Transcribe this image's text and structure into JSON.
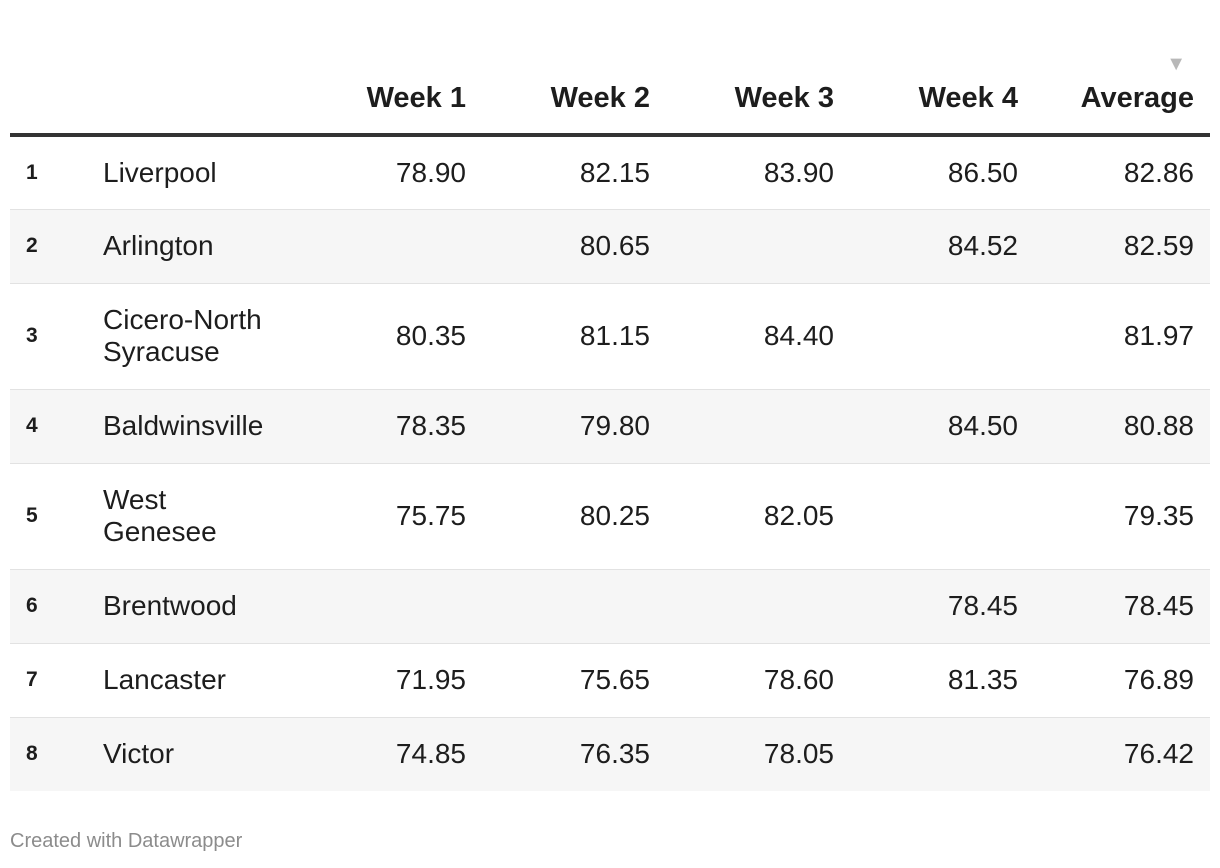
{
  "table": {
    "columns": [
      "",
      "",
      "Week 1",
      "Week 2",
      "Week 3",
      "Week 4",
      "Average"
    ],
    "rows": [
      {
        "rank": "1",
        "name": "Liverpool",
        "w1": "78.90",
        "w2": "82.15",
        "w3": "83.90",
        "w4": "86.50",
        "avg": "82.86"
      },
      {
        "rank": "2",
        "name": "Arlington",
        "w1": "",
        "w2": "80.65",
        "w3": "",
        "w4": "84.52",
        "avg": "82.59"
      },
      {
        "rank": "3",
        "name": "Cicero-North Syracuse",
        "w1": "80.35",
        "w2": "81.15",
        "w3": "84.40",
        "w4": "",
        "avg": "81.97"
      },
      {
        "rank": "4",
        "name": "Baldwinsville",
        "w1": "78.35",
        "w2": "79.80",
        "w3": "",
        "w4": "84.50",
        "avg": "80.88"
      },
      {
        "rank": "5",
        "name": "West Genesee",
        "w1": "75.75",
        "w2": "80.25",
        "w3": "82.05",
        "w4": "",
        "avg": "79.35"
      },
      {
        "rank": "6",
        "name": "Brentwood",
        "w1": "",
        "w2": "",
        "w3": "",
        "w4": "78.45",
        "avg": "78.45"
      },
      {
        "rank": "7",
        "name": "Lancaster",
        "w1": "71.95",
        "w2": "75.65",
        "w3": "78.60",
        "w4": "81.35",
        "avg": "76.89"
      },
      {
        "rank": "8",
        "name": "Victor",
        "w1": "74.85",
        "w2": "76.35",
        "w3": "78.05",
        "w4": "",
        "avg": "76.42"
      }
    ],
    "sort_column": "Average",
    "sort_direction": "descending",
    "sort_icon": "sort-descending-triangle"
  },
  "footer": {
    "credit": "Created with Datawrapper"
  },
  "colors": {
    "header_rule": "#333333",
    "row_shade": "#f6f6f6",
    "row_rule": "#e2e2e2",
    "footer_text": "#8c8c8c",
    "sort_arrow": "#b8b8b8"
  },
  "chart_data": {
    "type": "table",
    "columns": [
      "Week 1",
      "Week 2",
      "Week 3",
      "Week 4",
      "Average"
    ],
    "rows": [
      {
        "rank": 1,
        "name": "Liverpool",
        "values": [
          78.9,
          82.15,
          83.9,
          86.5,
          82.86
        ]
      },
      {
        "rank": 2,
        "name": "Arlington",
        "values": [
          null,
          80.65,
          null,
          84.52,
          82.59
        ]
      },
      {
        "rank": 3,
        "name": "Cicero-North Syracuse",
        "values": [
          80.35,
          81.15,
          84.4,
          null,
          81.97
        ]
      },
      {
        "rank": 4,
        "name": "Baldwinsville",
        "values": [
          78.35,
          79.8,
          null,
          84.5,
          80.88
        ]
      },
      {
        "rank": 5,
        "name": "West Genesee",
        "values": [
          75.75,
          80.25,
          82.05,
          null,
          79.35
        ]
      },
      {
        "rank": 6,
        "name": "Brentwood",
        "values": [
          null,
          null,
          null,
          78.45,
          78.45
        ]
      },
      {
        "rank": 7,
        "name": "Lancaster",
        "values": [
          71.95,
          75.65,
          78.6,
          81.35,
          76.89
        ]
      },
      {
        "rank": 8,
        "name": "Victor",
        "values": [
          74.85,
          76.35,
          78.05,
          null,
          76.42
        ]
      }
    ]
  }
}
